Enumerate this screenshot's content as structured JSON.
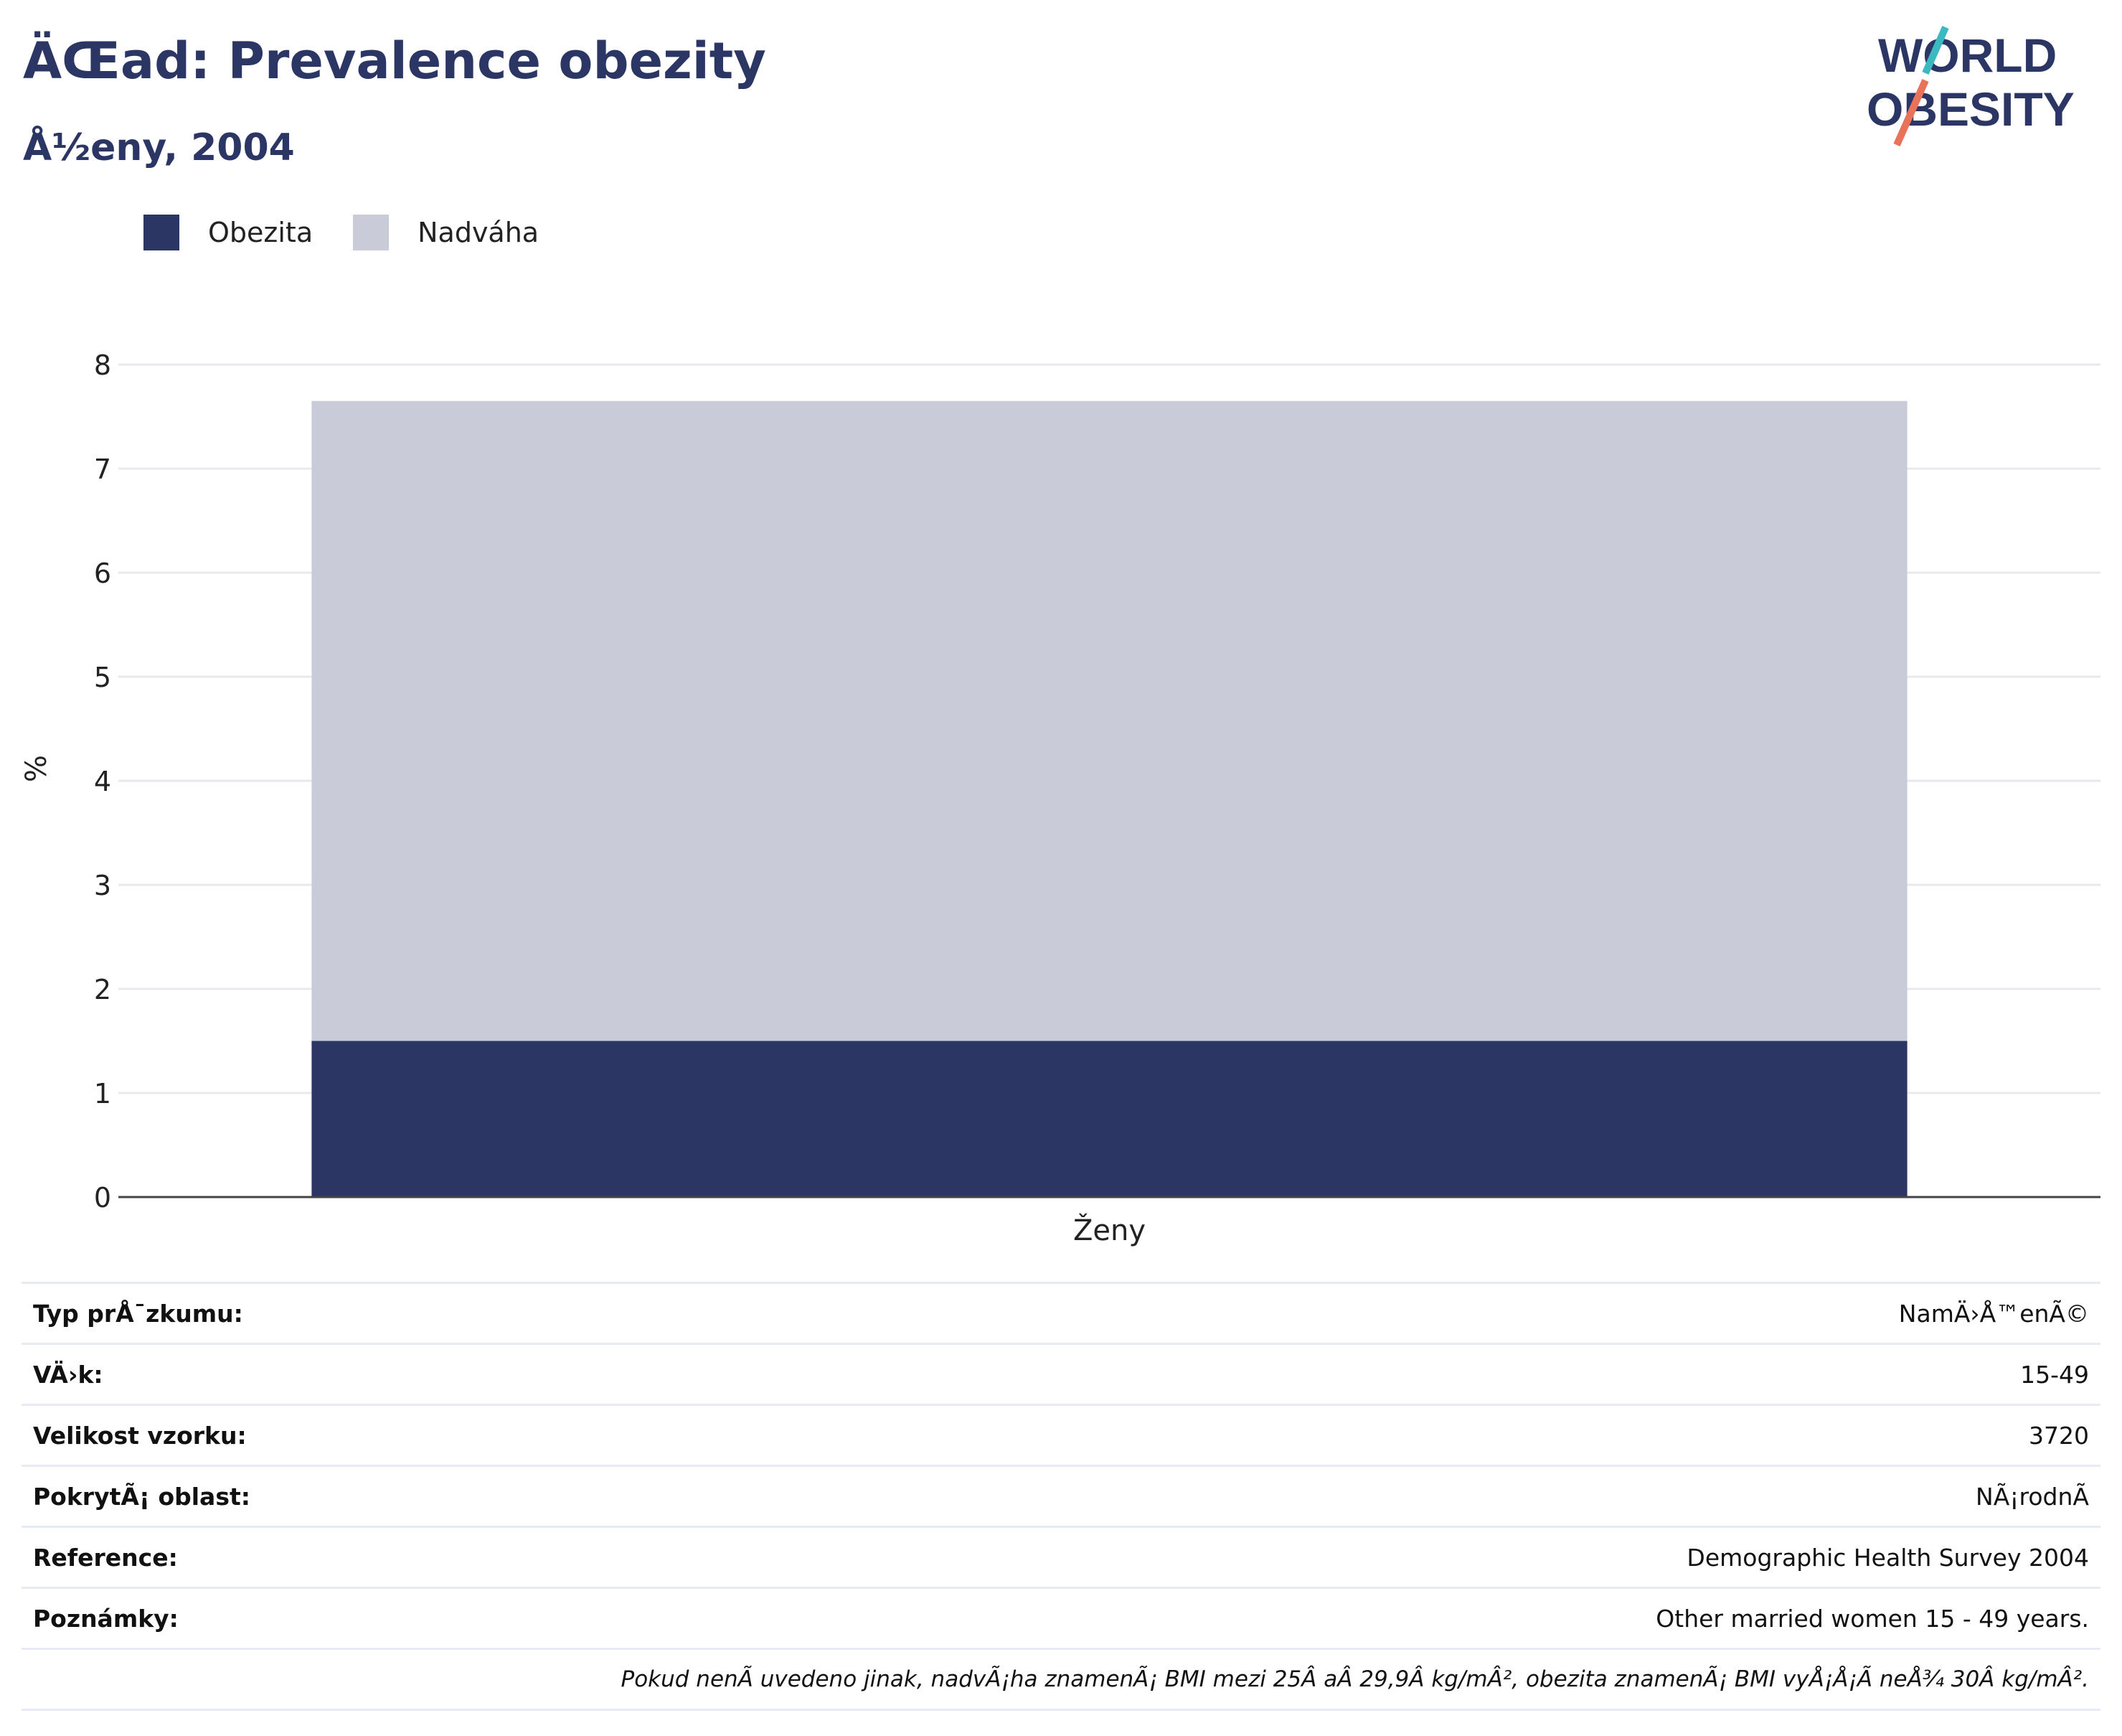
{
  "header": {
    "title": "ÄŒad: Prevalence obezity",
    "subtitle": "Å½eny, 2004"
  },
  "logo": {
    "line1": "WORLD",
    "line2": "OBESITY",
    "colors": {
      "text": "#2b3664",
      "slash_top": "#3cb8c0",
      "slash_bottom": "#e8735a"
    }
  },
  "legend": [
    {
      "label": "Obezita",
      "color": "#2b3664"
    },
    {
      "label": "Nadváha",
      "color": "#c9ccd8"
    }
  ],
  "chart_data": {
    "type": "bar",
    "stacked": true,
    "categories": [
      "Ženy"
    ],
    "series": [
      {
        "name": "Obezita",
        "values": [
          1.5
        ],
        "color": "#2b3664"
      },
      {
        "name": "Nadváha",
        "values": [
          6.15
        ],
        "color": "#c9ccd8"
      }
    ],
    "xlabel": "",
    "ylabel": "%",
    "ylim": [
      0,
      8
    ],
    "yticks": [
      "0",
      "1",
      "2",
      "3",
      "4",
      "5",
      "6",
      "7",
      "8"
    ],
    "grid": true,
    "legend_position": "top-left"
  },
  "info": [
    {
      "key": "Typ prÅ¯zkumu:",
      "value": "NamÄ›Å™enÃ©"
    },
    {
      "key": "VÄ›k:",
      "value": "15-49"
    },
    {
      "key": "Velikost vzorku:",
      "value": "3720"
    },
    {
      "key": "PokrytÃ¡ oblast:",
      "value": "NÃ¡rodnÃ"
    },
    {
      "key": "Reference:",
      "value": "Demographic Health Survey 2004"
    },
    {
      "key": "Poznámky:",
      "value": "Other married women 15 - 49 years."
    }
  ],
  "footnote": "Pokud nenÃ uvedeno jinak, nadvÃ¡ha znamenÃ¡ BMI mezi 25Â aÂ 29,9Â kg/mÂ², obezita znamenÃ¡ BMI vyÅ¡Å¡Ã neÅ¾ 30Â kg/mÂ²."
}
